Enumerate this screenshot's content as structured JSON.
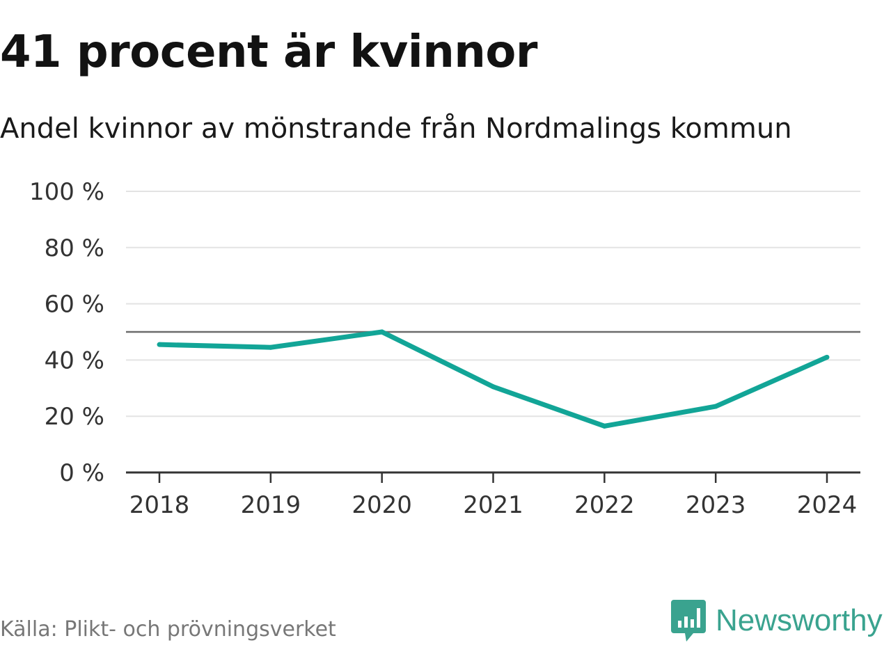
{
  "header": {
    "title": "41 procent är kvinnor",
    "subtitle": "Andel kvinnor av mönstrande från Nordmalings kommun"
  },
  "footer": {
    "source": "Källa: Plikt- och prövningsverket",
    "brand": "Newsworthy",
    "brand_icon": "newsworthy-logo-icon",
    "brand_color": "#3aa38f"
  },
  "colors": {
    "line": "#12a597",
    "reference_line": "#6b6b6b",
    "grid": "#e3e3e3",
    "axis": "#333333"
  },
  "chart_data": {
    "type": "line",
    "title": "41 procent är kvinnor",
    "subtitle": "Andel kvinnor av mönstrande från Nordmalings kommun",
    "xlabel": "",
    "ylabel": "",
    "categories": [
      "2018",
      "2019",
      "2020",
      "2021",
      "2022",
      "2023",
      "2024"
    ],
    "series": [
      {
        "name": "Andel kvinnor",
        "values": [
          45.5,
          44.5,
          50,
          30.5,
          16.5,
          23.5,
          41
        ]
      }
    ],
    "reference_line": 50,
    "ylim": [
      0,
      100
    ],
    "yticks": [
      0,
      20,
      40,
      60,
      80,
      100
    ],
    "ytick_labels": [
      "0 %",
      "20 %",
      "40 %",
      "60 %",
      "80 %",
      "100 %"
    ],
    "grid": true,
    "legend": "none"
  }
}
